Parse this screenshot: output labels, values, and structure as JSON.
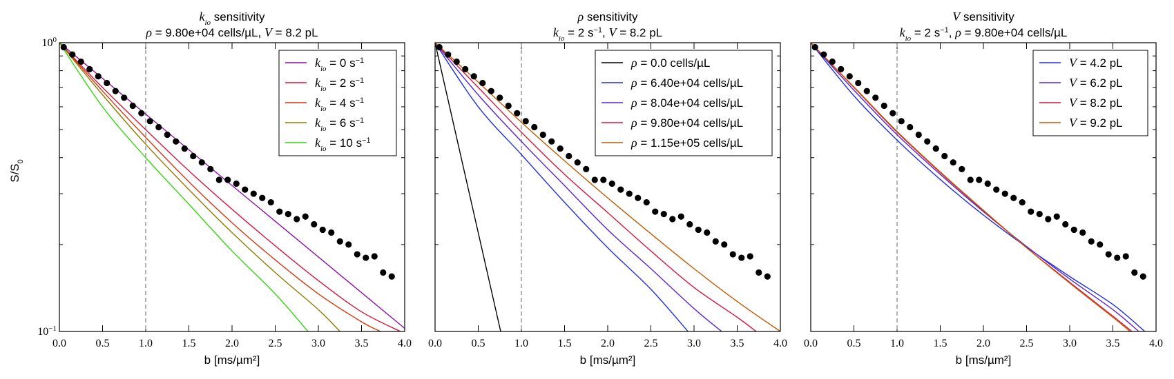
{
  "figure": {
    "ylabel_main": "S/S",
    "ylabel_sub": "0",
    "ytick_top": {
      "base": "10",
      "exp": "0"
    },
    "ytick_bottom": {
      "base": "10",
      "exp": "−1"
    }
  },
  "chart_data": [
    {
      "type": "line",
      "title_var": "k",
      "title_var_sub": "io",
      "title_rest": " sensitivity",
      "subtitle": [
        {
          "t": "ρ",
          "style": "math"
        },
        {
          "t": " = 9.80e+04 cells/µL, ",
          "style": "text"
        },
        {
          "t": "V",
          "style": "math"
        },
        {
          "t": " = 8.2 pL",
          "style": "text"
        }
      ],
      "xlabel": "b [ms/µm²]",
      "xlim": [
        0,
        4
      ],
      "ylim": [
        0.1,
        1
      ],
      "yscale": "log",
      "xticks": [
        "0.0",
        "0.5",
        "1.0",
        "1.5",
        "2.0",
        "2.5",
        "3.0",
        "3.5",
        "4.0"
      ],
      "vline": 1.0,
      "legend_position": "top-right",
      "series": [
        {
          "name": "k_io = 0 s⁻¹",
          "legend": [
            {
              "t": "k",
              "style": "math"
            },
            {
              "t": "io",
              "style": "sub"
            },
            {
              "t": " = 0 s",
              "style": "text"
            },
            {
              "t": "−1",
              "style": "sup"
            }
          ],
          "color": "#8B0FA8",
          "x": [
            0,
            4.0
          ],
          "y": [
            1.0,
            0.1025
          ]
        },
        {
          "name": "k_io = 2 s⁻¹",
          "legend": [
            {
              "t": "k",
              "style": "math"
            },
            {
              "t": "io",
              "style": "sub"
            },
            {
              "t": " = 2 s",
              "style": "text"
            },
            {
              "t": "−1",
              "style": "sup"
            }
          ],
          "color": "#D6163C",
          "x": [
            0,
            0.5,
            1.0,
            1.5,
            2.0,
            2.5,
            3.0,
            3.5,
            3.95
          ],
          "y": [
            1.0,
            0.7,
            0.5,
            0.36,
            0.265,
            0.198,
            0.15,
            0.117,
            0.1
          ]
        },
        {
          "name": "k_io = 4 s⁻¹",
          "legend": [
            {
              "t": "k",
              "style": "math"
            },
            {
              "t": "io",
              "style": "sub"
            },
            {
              "t": " = 4 s",
              "style": "text"
            },
            {
              "t": "−1",
              "style": "sup"
            }
          ],
          "color": "#D63510",
          "x": [
            0,
            0.5,
            1.0,
            1.5,
            2.0,
            2.5,
            3.0,
            3.5,
            3.72
          ],
          "y": [
            1.0,
            0.68,
            0.47,
            0.33,
            0.238,
            0.177,
            0.135,
            0.108,
            0.1
          ]
        },
        {
          "name": "k_io = 6 s⁻¹",
          "legend": [
            {
              "t": "k",
              "style": "math"
            },
            {
              "t": "io",
              "style": "sub"
            },
            {
              "t": " = 6 s",
              "style": "text"
            },
            {
              "t": "−1",
              "style": "sup"
            }
          ],
          "color": "#8F7A00",
          "x": [
            0,
            0.5,
            1.0,
            1.5,
            2.0,
            2.5,
            3.0,
            3.25
          ],
          "y": [
            1.0,
            0.66,
            0.445,
            0.31,
            0.22,
            0.16,
            0.119,
            0.1
          ]
        },
        {
          "name": "k_io = 10 s⁻¹",
          "legend": [
            {
              "t": "k",
              "style": "math"
            },
            {
              "t": "io",
              "style": "sub"
            },
            {
              "t": " = 10 s",
              "style": "text"
            },
            {
              "t": "−1",
              "style": "sup"
            }
          ],
          "color": "#33D60F",
          "x": [
            0,
            0.5,
            1.0,
            1.5,
            2.0,
            2.5,
            2.88
          ],
          "y": [
            1.0,
            0.6,
            0.4,
            0.276,
            0.19,
            0.135,
            0.1
          ]
        }
      ]
    },
    {
      "type": "line",
      "title_var": "ρ",
      "title_var_sub": "",
      "title_rest": " sensitivity",
      "subtitle": [
        {
          "t": "k",
          "style": "math"
        },
        {
          "t": "io",
          "style": "sub"
        },
        {
          "t": " = 2 s",
          "style": "text"
        },
        {
          "t": "−1",
          "style": "sup"
        },
        {
          "t": ", ",
          "style": "text"
        },
        {
          "t": "V",
          "style": "math"
        },
        {
          "t": " = 8.2 pL",
          "style": "text"
        }
      ],
      "xlabel": "b [ms/µm²]",
      "xlim": [
        0,
        4
      ],
      "ylim": [
        0.1,
        1
      ],
      "yscale": "log",
      "xticks": [
        "0.0",
        "0.5",
        "1.0",
        "1.5",
        "2.0",
        "2.5",
        "3.0",
        "3.5",
        "4.0"
      ],
      "vline": 1.0,
      "legend_position": "top-right",
      "series": [
        {
          "name": "ρ = 0.0 cells/µL",
          "legend": [
            {
              "t": "ρ",
              "style": "math"
            },
            {
              "t": " = 0.0 cells/µL",
              "style": "text"
            }
          ],
          "color": "#000000",
          "x": [
            0,
            0.76
          ],
          "y": [
            1.0,
            0.1
          ]
        },
        {
          "name": "ρ = 6.40e+04 cells/µL",
          "legend": [
            {
              "t": "ρ",
              "style": "math"
            },
            {
              "t": " = 6.40e+04 cells/µL",
              "style": "text"
            }
          ],
          "color": "#1F2FE0",
          "x": [
            0,
            0.5,
            1.0,
            1.5,
            2.0,
            2.5,
            2.93
          ],
          "y": [
            1.0,
            0.6,
            0.41,
            0.28,
            0.195,
            0.14,
            0.1
          ]
        },
        {
          "name": "ρ = 8.04e+04 cells/µL",
          "legend": [
            {
              "t": "ρ",
              "style": "math"
            },
            {
              "t": " = 8.04e+04 cells/µL",
              "style": "text"
            }
          ],
          "color": "#5A22D6",
          "x": [
            0,
            0.5,
            1.0,
            1.5,
            2.0,
            2.5,
            3.0,
            3.32
          ],
          "y": [
            1.0,
            0.66,
            0.455,
            0.32,
            0.225,
            0.165,
            0.12,
            0.1
          ]
        },
        {
          "name": "ρ = 9.80e+04 cells/µL",
          "legend": [
            {
              "t": "ρ",
              "style": "math"
            },
            {
              "t": " = 9.80e+04 cells/µL",
              "style": "text"
            }
          ],
          "color": "#D6163C",
          "x": [
            0,
            0.5,
            1.0,
            1.5,
            2.0,
            2.5,
            3.0,
            3.5,
            3.72
          ],
          "y": [
            1.0,
            0.7,
            0.49,
            0.35,
            0.258,
            0.19,
            0.142,
            0.112,
            0.1
          ]
        },
        {
          "name": "ρ = 1.15e+05 cells/µL",
          "legend": [
            {
              "t": "ρ",
              "style": "math"
            },
            {
              "t": " = 1.15e+05 cells/µL",
              "style": "text"
            }
          ],
          "color": "#C25A00",
          "x": [
            0,
            0.5,
            1.0,
            1.5,
            2.0,
            2.5,
            3.0,
            3.5,
            4.0
          ],
          "y": [
            1.0,
            0.73,
            0.53,
            0.39,
            0.29,
            0.218,
            0.165,
            0.127,
            0.1
          ]
        }
      ]
    },
    {
      "type": "line",
      "title_var": "V",
      "title_var_sub": "",
      "title_rest": " sensitivity",
      "subtitle": [
        {
          "t": "k",
          "style": "math"
        },
        {
          "t": "io",
          "style": "sub"
        },
        {
          "t": " = 2 s",
          "style": "text"
        },
        {
          "t": "−1",
          "style": "sup"
        },
        {
          "t": ", ",
          "style": "text"
        },
        {
          "t": "ρ",
          "style": "math"
        },
        {
          "t": " = 9.80e+04 cells/µL",
          "style": "text"
        }
      ],
      "xlabel": "b [ms/µm²]",
      "xlim": [
        0,
        4
      ],
      "ylim": [
        0.1,
        1
      ],
      "yscale": "log",
      "xticks": [
        "0.0",
        "0.5",
        "1.0",
        "1.5",
        "2.0",
        "2.5",
        "3.0",
        "3.5",
        "4.0"
      ],
      "vline": 1.0,
      "legend_position": "top-right",
      "series": [
        {
          "name": "V = 4.2 pL",
          "legend": [
            {
              "t": "V",
              "style": "math"
            },
            {
              "t": " = 4.2 pL",
              "style": "text"
            }
          ],
          "color": "#1F2FE0",
          "x": [
            0,
            0.5,
            1.0,
            1.5,
            2.0,
            2.5,
            3.0,
            3.5,
            3.87
          ],
          "y": [
            1.0,
            0.655,
            0.46,
            0.336,
            0.253,
            0.196,
            0.155,
            0.124,
            0.1
          ]
        },
        {
          "name": "V = 6.2 pL",
          "legend": [
            {
              "t": "V",
              "style": "math"
            },
            {
              "t": " = 6.2 pL",
              "style": "text"
            }
          ],
          "color": "#5A22D6",
          "x": [
            0,
            0.5,
            1.0,
            1.5,
            2.0,
            2.5,
            3.0,
            3.5,
            3.8
          ],
          "y": [
            1.0,
            0.685,
            0.48,
            0.35,
            0.26,
            0.197,
            0.152,
            0.119,
            0.1
          ]
        },
        {
          "name": "V = 8.2 pL",
          "legend": [
            {
              "t": "V",
              "style": "math"
            },
            {
              "t": " = 8.2 pL",
              "style": "text"
            }
          ],
          "color": "#D6163C",
          "x": [
            0,
            0.5,
            1.0,
            1.5,
            2.0,
            2.5,
            3.0,
            3.5,
            3.72
          ],
          "y": [
            1.0,
            0.7,
            0.49,
            0.355,
            0.262,
            0.195,
            0.148,
            0.113,
            0.1
          ]
        },
        {
          "name": "V = 9.2 pL",
          "legend": [
            {
              "t": "V",
              "style": "math"
            },
            {
              "t": " = 9.2 pL",
              "style": "text"
            }
          ],
          "color": "#C25A00",
          "x": [
            0,
            0.5,
            1.0,
            1.5,
            2.0,
            2.5,
            3.0,
            3.5,
            3.7
          ],
          "y": [
            1.0,
            0.703,
            0.493,
            0.357,
            0.263,
            0.195,
            0.147,
            0.112,
            0.1
          ]
        }
      ]
    }
  ],
  "measured_points": {
    "name": "data",
    "color": "#000000",
    "x": [
      0.05,
      0.15,
      0.25,
      0.35,
      0.45,
      0.55,
      0.65,
      0.75,
      0.85,
      0.95,
      1.05,
      1.15,
      1.25,
      1.35,
      1.45,
      1.55,
      1.65,
      1.75,
      1.85,
      1.95,
      2.05,
      2.15,
      2.25,
      2.35,
      2.45,
      2.55,
      2.65,
      2.75,
      2.85,
      2.95,
      3.05,
      3.15,
      3.25,
      3.35,
      3.45,
      3.55,
      3.65,
      3.75,
      3.85
    ],
    "y": [
      0.965,
      0.91,
      0.86,
      0.81,
      0.765,
      0.725,
      0.68,
      0.645,
      0.605,
      0.57,
      0.535,
      0.51,
      0.48,
      0.455,
      0.43,
      0.405,
      0.385,
      0.365,
      0.335,
      0.335,
      0.325,
      0.31,
      0.3,
      0.29,
      0.28,
      0.26,
      0.255,
      0.245,
      0.25,
      0.235,
      0.225,
      0.22,
      0.205,
      0.2,
      0.185,
      0.18,
      0.182,
      0.16,
      0.155
    ]
  }
}
